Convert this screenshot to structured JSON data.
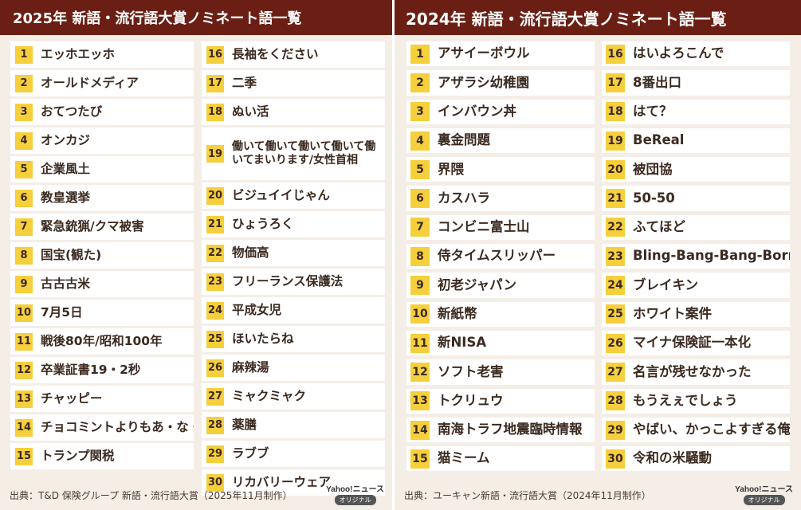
{
  "left": {
    "title": "2025年 新語・流行語大賞ノミネート語一覧",
    "col1": [
      {
        "n": "1",
        "t": "エッホエッホ"
      },
      {
        "n": "2",
        "t": "オールドメディア"
      },
      {
        "n": "3",
        "t": "おてつたび"
      },
      {
        "n": "4",
        "t": "オンカジ"
      },
      {
        "n": "5",
        "t": "企業風土"
      },
      {
        "n": "6",
        "t": "教皇選挙"
      },
      {
        "n": "7",
        "t": "緊急銃猟/クマ被害"
      },
      {
        "n": "8",
        "t": "国宝(観た)"
      },
      {
        "n": "9",
        "t": "古古古米"
      },
      {
        "n": "10",
        "t": "7月5日"
      },
      {
        "n": "11",
        "t": "戦後80年/昭和100年"
      },
      {
        "n": "12",
        "t": "卒業証書19・2秒"
      },
      {
        "n": "13",
        "t": "チャッピー"
      },
      {
        "n": "14",
        "t": "チョコミントよりもあ・な・た"
      },
      {
        "n": "15",
        "t": "トランプ関税"
      }
    ],
    "col2": [
      {
        "n": "16",
        "t": "長袖をください"
      },
      {
        "n": "17",
        "t": "二季"
      },
      {
        "n": "18",
        "t": "ぬい活"
      },
      {
        "n": "19",
        "t": "働いて働いて働いて働いて働いてまいります/女性首相"
      },
      {
        "n": "20",
        "t": "ビジュイイじゃん"
      },
      {
        "n": "21",
        "t": "ひょうろく"
      },
      {
        "n": "22",
        "t": "物価高"
      },
      {
        "n": "23",
        "t": "フリーランス保護法"
      },
      {
        "n": "24",
        "t": "平成女児"
      },
      {
        "n": "25",
        "t": "ほいたらね"
      },
      {
        "n": "26",
        "t": "麻辣湯"
      },
      {
        "n": "27",
        "t": "ミャクミャク"
      },
      {
        "n": "28",
        "t": "薬膳"
      },
      {
        "n": "29",
        "t": "ラブブ"
      },
      {
        "n": "30",
        "t": "リカバリーウェア"
      }
    ],
    "source": "出典：T&D 保険グループ 新語・流行語大賞（2025年11月制作）",
    "logo_top": "Yahoo!ニュース",
    "logo_badge": "オリジナル"
  },
  "right": {
    "title": "2024年 新語・流行語大賞ノミネート語一覧",
    "col1": [
      {
        "n": "1",
        "t": "アサイーボウル"
      },
      {
        "n": "2",
        "t": "アザラシ幼稚園"
      },
      {
        "n": "3",
        "t": "インバウン丼"
      },
      {
        "n": "4",
        "t": "裏金問題"
      },
      {
        "n": "5",
        "t": "界隈"
      },
      {
        "n": "6",
        "t": "カスハラ"
      },
      {
        "n": "7",
        "t": "コンビニ富士山"
      },
      {
        "n": "8",
        "t": "侍タイムスリッパー"
      },
      {
        "n": "9",
        "t": "初老ジャパン"
      },
      {
        "n": "10",
        "t": "新紙幣"
      },
      {
        "n": "11",
        "t": "新NISA"
      },
      {
        "n": "12",
        "t": "ソフト老害"
      },
      {
        "n": "13",
        "t": "トクリュウ"
      },
      {
        "n": "14",
        "t": "南海トラフ地震臨時情報"
      },
      {
        "n": "15",
        "t": "猫ミーム"
      }
    ],
    "col2": [
      {
        "n": "16",
        "t": "はいよろこんで"
      },
      {
        "n": "17",
        "t": "8番出口"
      },
      {
        "n": "18",
        "t": "はて？"
      },
      {
        "n": "19",
        "t": "BeReal"
      },
      {
        "n": "20",
        "t": "被団協"
      },
      {
        "n": "21",
        "t": "50-50"
      },
      {
        "n": "22",
        "t": "ふてほど"
      },
      {
        "n": "23",
        "t": "Bling-Bang-Bang-Born"
      },
      {
        "n": "24",
        "t": "ブレイキン"
      },
      {
        "n": "25",
        "t": "ホワイト案件"
      },
      {
        "n": "26",
        "t": "マイナ保険証一本化"
      },
      {
        "n": "27",
        "t": "名言が残せなかった"
      },
      {
        "n": "28",
        "t": "もうえぇでしょう"
      },
      {
        "n": "29",
        "t": "やばい、かっこよすぎる俺"
      },
      {
        "n": "30",
        "t": "令和の米騒動"
      }
    ],
    "source": "出典：ユーキャン新語・流行語大賞（2024年11月制作）",
    "logo_top": "Yahoo!ニュース",
    "logo_badge": "オリジナル"
  },
  "colors": {
    "header_bg": "#6b1f14",
    "number_badge": "#f6cf3c",
    "panel_bg": "#f4eee7"
  }
}
